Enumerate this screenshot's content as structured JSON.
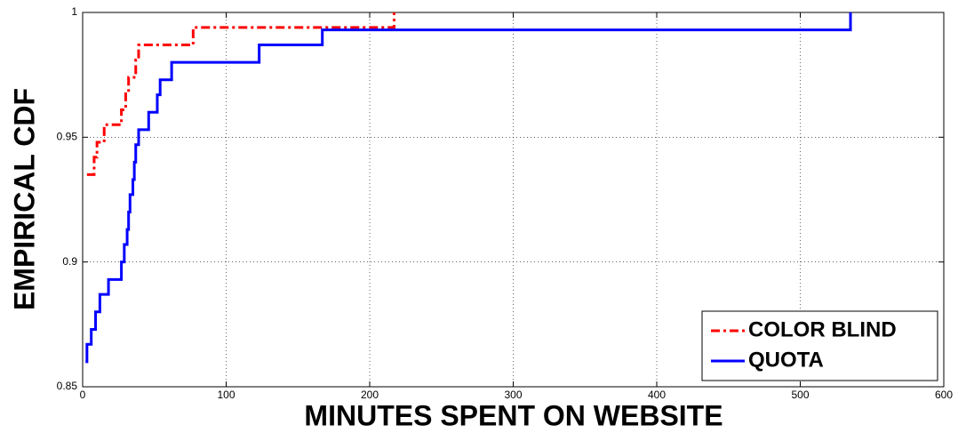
{
  "chart_data": {
    "type": "line",
    "drawstyle": "steps",
    "xlabel": "MINUTES SPENT ON WEBSITE",
    "ylabel": "EMPIRICAL CDF",
    "xlim": [
      0,
      600
    ],
    "xticks": [
      0,
      100,
      200,
      300,
      400,
      500,
      600
    ],
    "ylim": [
      0.85,
      1
    ],
    "yticks": [
      0.85,
      0.9,
      0.95,
      1
    ],
    "grid": true,
    "legend": "lower right",
    "series": [
      {
        "name": "COLOR BLIND",
        "color": "#ff0000",
        "dash": "dashdot",
        "x": [
          3,
          8,
          8,
          10,
          10,
          15,
          15,
          27,
          27,
          30,
          30,
          32,
          32,
          37,
          37,
          39,
          39,
          77,
          77,
          217,
          217
        ],
        "values": [
          0.935,
          0.935,
          0.942,
          0.942,
          0.948,
          0.948,
          0.955,
          0.955,
          0.961,
          0.961,
          0.968,
          0.968,
          0.974,
          0.974,
          0.981,
          0.981,
          0.987,
          0.987,
          0.994,
          0.994,
          1.0
        ]
      },
      {
        "name": "QUOTA",
        "color": "#0000ff",
        "dash": "solid",
        "x": [
          2,
          3,
          3,
          6,
          6,
          9,
          9,
          12,
          12,
          18,
          18,
          27,
          27,
          29,
          29,
          31,
          31,
          32,
          32,
          33,
          33,
          35,
          35,
          36,
          36,
          37,
          37,
          39,
          39,
          46,
          46,
          52,
          52,
          54,
          54,
          62,
          62,
          123,
          123,
          167,
          167,
          535,
          535
        ],
        "values": [
          0.86,
          0.86,
          0.867,
          0.867,
          0.873,
          0.873,
          0.88,
          0.88,
          0.887,
          0.887,
          0.893,
          0.893,
          0.9,
          0.9,
          0.907,
          0.907,
          0.913,
          0.913,
          0.92,
          0.92,
          0.927,
          0.927,
          0.933,
          0.933,
          0.94,
          0.94,
          0.947,
          0.947,
          0.953,
          0.953,
          0.96,
          0.96,
          0.967,
          0.967,
          0.973,
          0.973,
          0.98,
          0.98,
          0.987,
          0.987,
          0.993,
          0.993,
          1.0
        ]
      }
    ]
  }
}
